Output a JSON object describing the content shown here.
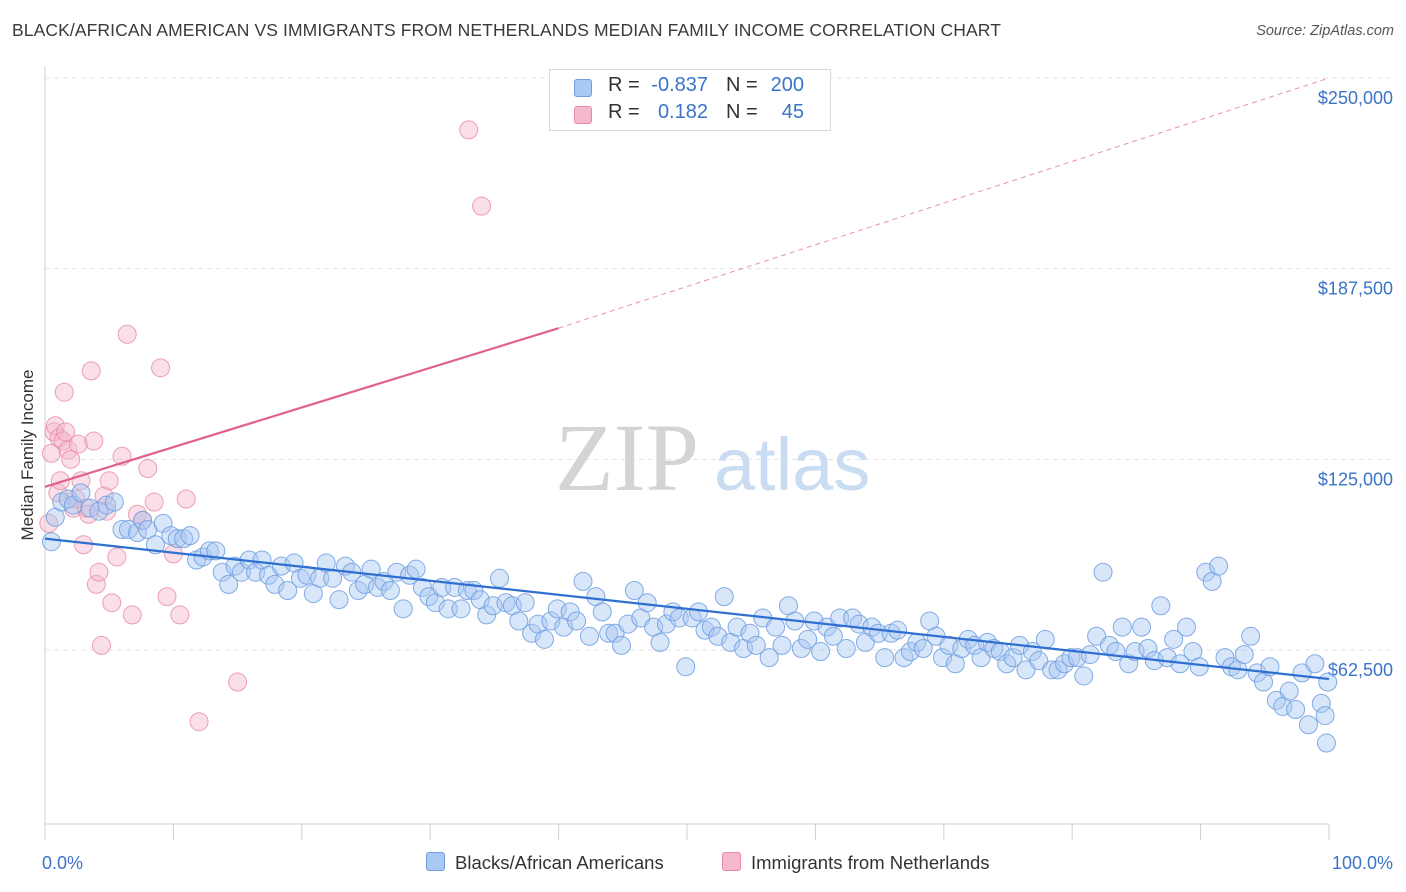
{
  "title": "BLACK/AFRICAN AMERICAN VS IMMIGRANTS FROM NETHERLANDS MEDIAN FAMILY INCOME CORRELATION CHART",
  "source": "Source: ZipAtlas.com",
  "watermark": {
    "zip": "ZIP",
    "atlas": "atlas"
  },
  "legend_stats": [
    {
      "r_label": "R =",
      "r_value": "-0.837",
      "n_label": "N =",
      "n_value": "200",
      "color": "#a9c8f2"
    },
    {
      "r_label": "R =",
      "r_value": "0.182",
      "n_label": "N =",
      "n_value": "45",
      "color": "#f5b9cb"
    }
  ],
  "bottom_legend": [
    {
      "label": "Blacks/African Americans",
      "color": "#a9c8f2"
    },
    {
      "label": "Immigrants from Netherlands",
      "color": "#f5b9cb"
    }
  ],
  "colors": {
    "blue_point": "#a9c8f2",
    "blue_stroke": "#6f9de0",
    "blue_line": "#2f6fd0",
    "pink_point": "#f5b9cb",
    "pink_stroke": "#e88aa6",
    "pink_line": "#e0628c",
    "tick_label": "#3b73c8"
  },
  "chart_data": {
    "type": "scatter",
    "title": "BLACK/AFRICAN AMERICAN VS IMMIGRANTS FROM NETHERLANDS MEDIAN FAMILY INCOME CORRELATION CHART",
    "xlabel": "",
    "ylabel": "Median Family Income",
    "xlim": [
      0,
      100
    ],
    "ylim": [
      5000,
      255000
    ],
    "x_tick_labels": [
      "0.0%",
      "100.0%"
    ],
    "y_ticks": [
      62500,
      125000,
      187500,
      250000
    ],
    "y_tick_labels": [
      "$62,500",
      "$125,000",
      "$187,500",
      "$250,000"
    ],
    "grid": true,
    "legend_position": "top-center",
    "series": [
      {
        "name": "Blacks/African Americans",
        "trendline": {
          "x": [
            0,
            100
          ],
          "y": [
            99000,
            53000
          ],
          "extrapolated": false
        },
        "points": [
          [
            0.5,
            98000
          ],
          [
            0.8,
            106000
          ],
          [
            1.3,
            111000
          ],
          [
            1.8,
            112000
          ],
          [
            2.2,
            110000
          ],
          [
            2.8,
            114000
          ],
          [
            3.5,
            109000
          ],
          [
            4.2,
            108000
          ],
          [
            4.8,
            110000
          ],
          [
            5.4,
            111000
          ],
          [
            6.0,
            102000
          ],
          [
            6.5,
            102000
          ],
          [
            7.2,
            101000
          ],
          [
            7.6,
            105000
          ],
          [
            8.0,
            102000
          ],
          [
            8.6,
            97000
          ],
          [
            9.2,
            104000
          ],
          [
            9.8,
            100000
          ],
          [
            10.3,
            99000
          ],
          [
            10.8,
            99000
          ],
          [
            11.3,
            100000
          ],
          [
            11.8,
            92000
          ],
          [
            12.3,
            93000
          ],
          [
            12.8,
            95000
          ],
          [
            13.3,
            95000
          ],
          [
            13.8,
            88000
          ],
          [
            14.3,
            84000
          ],
          [
            14.8,
            90000
          ],
          [
            15.3,
            88000
          ],
          [
            15.9,
            92000
          ],
          [
            16.4,
            88000
          ],
          [
            16.9,
            92000
          ],
          [
            17.4,
            87000
          ],
          [
            17.9,
            84000
          ],
          [
            18.4,
            90000
          ],
          [
            18.9,
            82000
          ],
          [
            19.4,
            91000
          ],
          [
            19.9,
            86000
          ],
          [
            20.4,
            87000
          ],
          [
            20.9,
            81000
          ],
          [
            21.4,
            86000
          ],
          [
            21.9,
            91000
          ],
          [
            22.4,
            86000
          ],
          [
            22.9,
            79000
          ],
          [
            23.4,
            90000
          ],
          [
            23.9,
            88000
          ],
          [
            24.4,
            82000
          ],
          [
            24.9,
            84000
          ],
          [
            25.4,
            89000
          ],
          [
            25.9,
            83000
          ],
          [
            26.4,
            85000
          ],
          [
            26.9,
            82000
          ],
          [
            27.4,
            88000
          ],
          [
            27.9,
            76000
          ],
          [
            28.4,
            87000
          ],
          [
            28.9,
            89000
          ],
          [
            29.4,
            83000
          ],
          [
            29.9,
            80000
          ],
          [
            30.4,
            78000
          ],
          [
            30.9,
            83000
          ],
          [
            31.4,
            76000
          ],
          [
            31.9,
            83000
          ],
          [
            32.4,
            76000
          ],
          [
            32.9,
            82000
          ],
          [
            33.4,
            82000
          ],
          [
            33.9,
            79000
          ],
          [
            34.4,
            74000
          ],
          [
            34.9,
            77000
          ],
          [
            35.4,
            86000
          ],
          [
            35.9,
            78000
          ],
          [
            36.4,
            77000
          ],
          [
            36.9,
            72000
          ],
          [
            37.4,
            78000
          ],
          [
            37.9,
            68000
          ],
          [
            38.4,
            71000
          ],
          [
            38.9,
            66000
          ],
          [
            39.4,
            72000
          ],
          [
            39.9,
            76000
          ],
          [
            40.4,
            70000
          ],
          [
            40.9,
            75000
          ],
          [
            41.4,
            72000
          ],
          [
            41.9,
            85000
          ],
          [
            42.4,
            67000
          ],
          [
            42.9,
            80000
          ],
          [
            43.4,
            75000
          ],
          [
            43.9,
            68000
          ],
          [
            44.4,
            68000
          ],
          [
            44.9,
            64000
          ],
          [
            45.4,
            71000
          ],
          [
            45.9,
            82000
          ],
          [
            46.4,
            73000
          ],
          [
            46.9,
            78000
          ],
          [
            47.4,
            70000
          ],
          [
            47.9,
            65000
          ],
          [
            48.4,
            71000
          ],
          [
            48.9,
            75000
          ],
          [
            49.4,
            73000
          ],
          [
            49.9,
            57000
          ],
          [
            50.4,
            73000
          ],
          [
            50.9,
            75000
          ],
          [
            51.4,
            69000
          ],
          [
            51.9,
            70000
          ],
          [
            52.4,
            67000
          ],
          [
            52.9,
            80000
          ],
          [
            53.4,
            65000
          ],
          [
            53.9,
            70000
          ],
          [
            54.4,
            63000
          ],
          [
            54.9,
            68000
          ],
          [
            55.4,
            64000
          ],
          [
            55.9,
            73000
          ],
          [
            56.4,
            60000
          ],
          [
            56.9,
            70000
          ],
          [
            57.4,
            64000
          ],
          [
            57.9,
            77000
          ],
          [
            58.4,
            72000
          ],
          [
            58.9,
            63000
          ],
          [
            59.4,
            66000
          ],
          [
            59.9,
            72000
          ],
          [
            60.4,
            62000
          ],
          [
            60.9,
            70000
          ],
          [
            61.4,
            67000
          ],
          [
            61.9,
            73000
          ],
          [
            62.4,
            63000
          ],
          [
            62.9,
            73000
          ],
          [
            63.4,
            71000
          ],
          [
            63.9,
            65000
          ],
          [
            64.4,
            70000
          ],
          [
            64.9,
            68000
          ],
          [
            65.4,
            60000
          ],
          [
            65.9,
            68000
          ],
          [
            66.4,
            69000
          ],
          [
            66.9,
            60000
          ],
          [
            67.4,
            62000
          ],
          [
            67.9,
            65000
          ],
          [
            68.4,
            63000
          ],
          [
            68.9,
            72000
          ],
          [
            69.4,
            67000
          ],
          [
            69.9,
            60000
          ],
          [
            70.4,
            64000
          ],
          [
            70.9,
            58000
          ],
          [
            71.4,
            63000
          ],
          [
            71.9,
            66000
          ],
          [
            72.4,
            64000
          ],
          [
            72.9,
            60000
          ],
          [
            73.4,
            65000
          ],
          [
            73.9,
            63000
          ],
          [
            74.4,
            62000
          ],
          [
            74.9,
            58000
          ],
          [
            75.4,
            60000
          ],
          [
            75.9,
            64000
          ],
          [
            76.4,
            56000
          ],
          [
            76.9,
            62000
          ],
          [
            77.4,
            59000
          ],
          [
            77.9,
            66000
          ],
          [
            78.4,
            56000
          ],
          [
            78.9,
            56000
          ],
          [
            79.4,
            58000
          ],
          [
            79.9,
            60000
          ],
          [
            80.4,
            60000
          ],
          [
            80.9,
            54000
          ],
          [
            81.4,
            61000
          ],
          [
            81.9,
            67000
          ],
          [
            82.4,
            88000
          ],
          [
            82.9,
            64000
          ],
          [
            83.4,
            62000
          ],
          [
            83.9,
            70000
          ],
          [
            84.4,
            58000
          ],
          [
            84.9,
            62000
          ],
          [
            85.4,
            70000
          ],
          [
            85.9,
            63000
          ],
          [
            86.4,
            59000
          ],
          [
            86.9,
            77000
          ],
          [
            87.4,
            60000
          ],
          [
            87.9,
            66000
          ],
          [
            88.4,
            58000
          ],
          [
            88.9,
            70000
          ],
          [
            89.4,
            62000
          ],
          [
            89.9,
            57000
          ],
          [
            90.4,
            88000
          ],
          [
            90.9,
            85000
          ],
          [
            91.4,
            90000
          ],
          [
            91.9,
            60000
          ],
          [
            92.4,
            57000
          ],
          [
            92.9,
            56000
          ],
          [
            93.4,
            61000
          ],
          [
            93.9,
            67000
          ],
          [
            94.4,
            55000
          ],
          [
            94.9,
            52000
          ],
          [
            95.4,
            57000
          ],
          [
            95.9,
            46000
          ],
          [
            96.4,
            44000
          ],
          [
            96.9,
            49000
          ],
          [
            97.4,
            43000
          ],
          [
            97.9,
            55000
          ],
          [
            98.4,
            38000
          ],
          [
            98.9,
            58000
          ],
          [
            99.4,
            45000
          ],
          [
            99.7,
            41000
          ],
          [
            99.8,
            32000
          ],
          [
            99.9,
            52000
          ]
        ]
      },
      {
        "name": "Immigrants from Netherlands",
        "trendline": {
          "x": [
            0,
            40
          ],
          "y": [
            116000,
            168000
          ],
          "extrapolated_to": [
            100,
            250000
          ]
        },
        "points": [
          [
            0.3,
            104000
          ],
          [
            0.5,
            127000
          ],
          [
            0.7,
            134000
          ],
          [
            0.8,
            136000
          ],
          [
            1.0,
            114000
          ],
          [
            1.1,
            132000
          ],
          [
            1.2,
            118000
          ],
          [
            1.4,
            131000
          ],
          [
            1.5,
            147000
          ],
          [
            1.6,
            134000
          ],
          [
            1.8,
            128000
          ],
          [
            2.0,
            125000
          ],
          [
            2.2,
            109000
          ],
          [
            2.4,
            112000
          ],
          [
            2.6,
            130000
          ],
          [
            2.8,
            118000
          ],
          [
            3.0,
            97000
          ],
          [
            3.2,
            109000
          ],
          [
            3.4,
            107000
          ],
          [
            3.6,
            154000
          ],
          [
            3.8,
            131000
          ],
          [
            4.0,
            84000
          ],
          [
            4.2,
            88000
          ],
          [
            4.4,
            64000
          ],
          [
            4.6,
            113000
          ],
          [
            4.8,
            108000
          ],
          [
            5.0,
            118000
          ],
          [
            5.2,
            78000
          ],
          [
            5.6,
            93000
          ],
          [
            6.0,
            126000
          ],
          [
            6.4,
            166000
          ],
          [
            6.8,
            74000
          ],
          [
            7.2,
            107000
          ],
          [
            7.6,
            105000
          ],
          [
            8.0,
            122000
          ],
          [
            8.5,
            111000
          ],
          [
            9.0,
            155000
          ],
          [
            9.5,
            80000
          ],
          [
            10.0,
            94000
          ],
          [
            10.5,
            74000
          ],
          [
            11.0,
            112000
          ],
          [
            12.0,
            39000
          ],
          [
            15.0,
            52000
          ],
          [
            33.0,
            233000
          ],
          [
            34.0,
            208000
          ]
        ]
      }
    ]
  }
}
